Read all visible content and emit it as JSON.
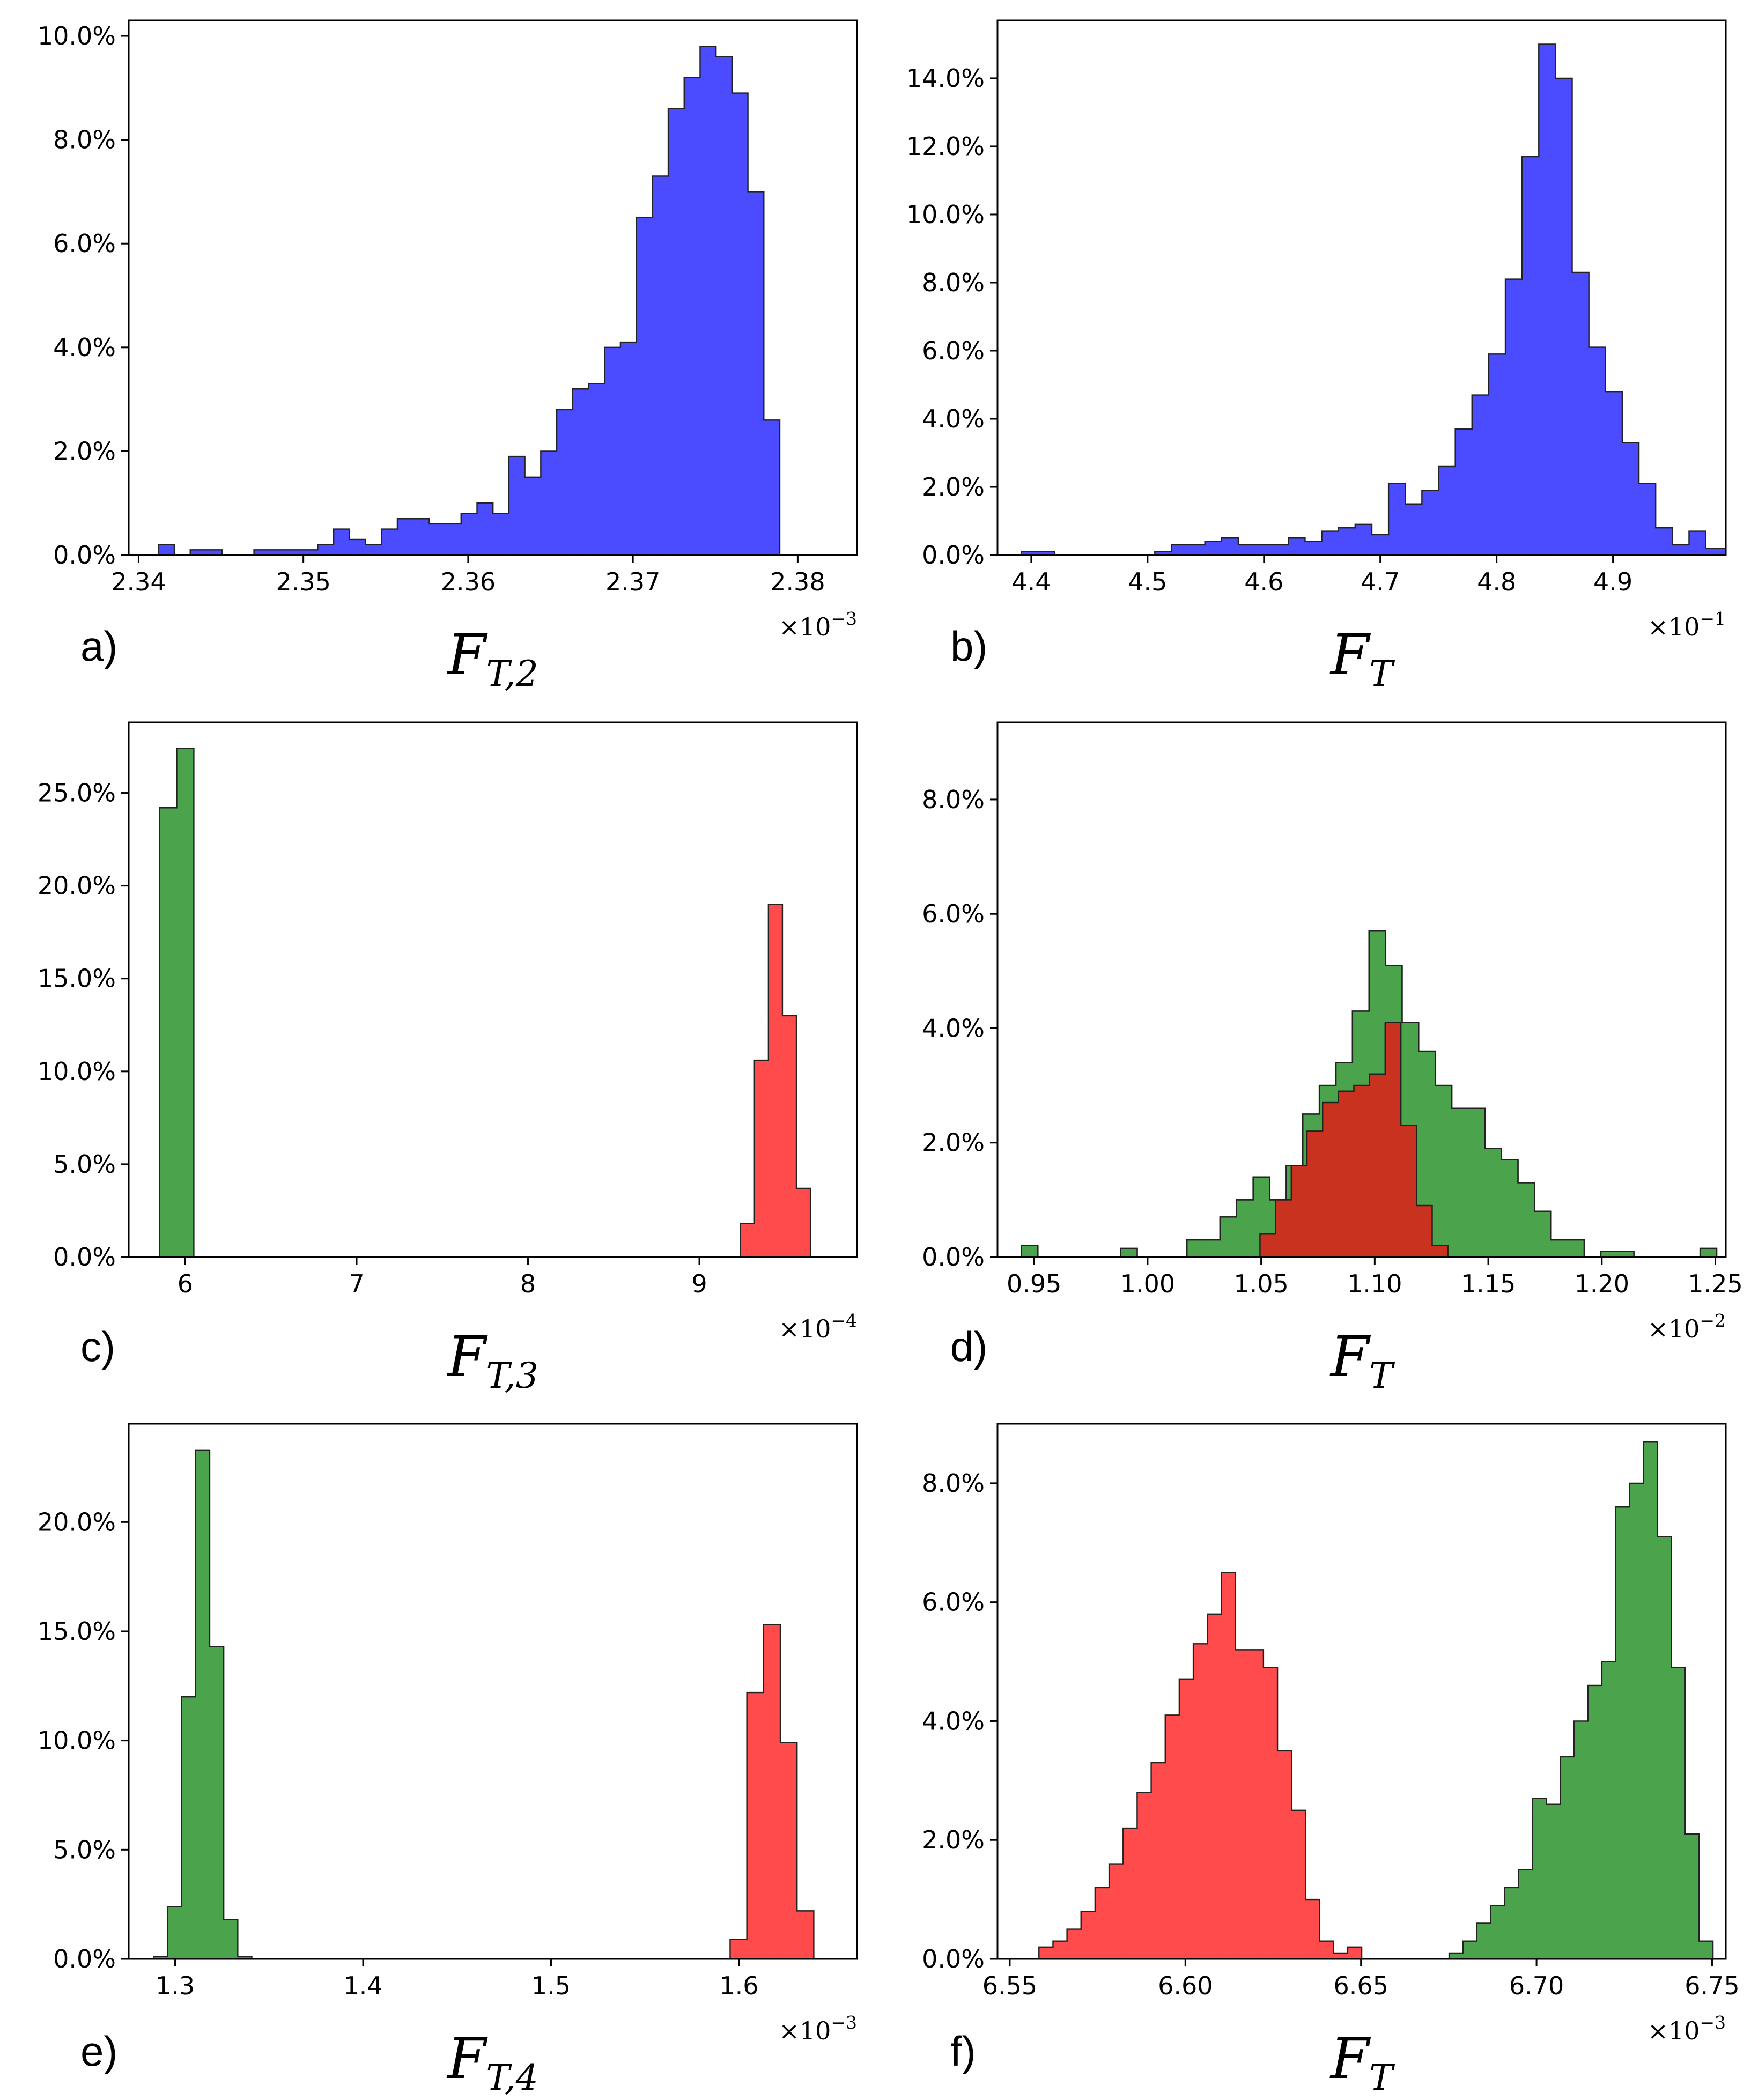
{
  "colors": {
    "blue": "#4b4bff",
    "red": "#ff4b4b",
    "green": "#4ba34b",
    "overlap": "#c8321e",
    "edge": "#222222"
  },
  "chart_data": [
    {
      "type": "histogram",
      "panel_label": "a)",
      "xlabel": {
        "main": "F",
        "sub": "T,2"
      },
      "multiplier": {
        "base": "×10",
        "exp": "−3"
      },
      "xlim": [
        2.3394,
        2.3836
      ],
      "ylim": [
        0,
        10.3
      ],
      "xticks": [
        "2.34",
        "2.35",
        "2.36",
        "2.37",
        "2.38"
      ],
      "xtick_values": [
        2.34,
        2.35,
        2.36,
        2.37,
        2.38
      ],
      "yticks": [
        "0.0%",
        "2.0%",
        "4.0%",
        "6.0%",
        "8.0%",
        "10.0%"
      ],
      "ytick_values": [
        0,
        2,
        4,
        6,
        8,
        10
      ],
      "series": [
        {
          "name": "blue",
          "color": "blue",
          "bin_start": 2.3412,
          "bin_width": 0.000967,
          "values": [
            0.2,
            0,
            0.1,
            0.1,
            0,
            0,
            0.1,
            0.1,
            0.1,
            0.1,
            0.2,
            0.5,
            0.3,
            0.2,
            0.5,
            0.7,
            0.7,
            0.6,
            0.6,
            0.8,
            1.0,
            0.8,
            1.9,
            1.5,
            2.0,
            2.8,
            3.2,
            3.3,
            4.0,
            4.1,
            6.5,
            7.3,
            8.6,
            9.2,
            9.8,
            9.6,
            8.9,
            7.0,
            2.6
          ]
        }
      ]
    },
    {
      "type": "histogram",
      "panel_label": "b)",
      "xlabel": {
        "main": "F",
        "sub": "T"
      },
      "multiplier": {
        "base": "×10",
        "exp": "−1"
      },
      "xlim": [
        4.371,
        4.997
      ],
      "ylim": [
        0,
        15.7
      ],
      "xticks": [
        "4.4",
        "4.5",
        "4.6",
        "4.7",
        "4.8",
        "4.9"
      ],
      "xtick_values": [
        4.4,
        4.5,
        4.6,
        4.7,
        4.8,
        4.9
      ],
      "yticks": [
        "0.0%",
        "2.0%",
        "4.0%",
        "6.0%",
        "8.0%",
        "10.0%",
        "12.0%",
        "14.0%"
      ],
      "ytick_values": [
        0,
        2,
        4,
        6,
        8,
        10,
        12,
        14
      ],
      "series": [
        {
          "name": "blue",
          "color": "blue",
          "bin_start": 4.3914,
          "bin_width": 0.01435,
          "values": [
            0.1,
            0.1,
            0,
            0,
            0,
            0,
            0,
            0,
            0.1,
            0.3,
            0.3,
            0.4,
            0.5,
            0.3,
            0.3,
            0.3,
            0.5,
            0.4,
            0.7,
            0.8,
            0.9,
            0.6,
            2.1,
            1.5,
            1.9,
            2.6,
            3.7,
            4.7,
            5.9,
            8.1,
            11.7,
            15.0,
            14.0,
            8.3,
            6.1,
            4.8,
            3.3,
            2.1,
            0.8,
            0.3,
            0.7,
            0.2,
            0.2
          ]
        }
      ]
    },
    {
      "type": "histogram",
      "panel_label": "c)",
      "xlabel": {
        "main": "F",
        "sub": "T,3"
      },
      "multiplier": {
        "base": "×10",
        "exp": "−4"
      },
      "xlim": [
        5.67,
        9.92
      ],
      "ylim": [
        0,
        28.8
      ],
      "xticks": [
        "6",
        "7",
        "8",
        "9"
      ],
      "xtick_values": [
        6,
        7,
        8,
        9
      ],
      "yticks": [
        "0.0%",
        "5.0%",
        "10.0%",
        "15.0%",
        "20.0%",
        "25.0%"
      ],
      "ytick_values": [
        0,
        5,
        10,
        15,
        20,
        25
      ],
      "series": [
        {
          "name": "green",
          "color": "green",
          "bin_start": 5.85,
          "bin_width": 0.1,
          "values": [
            24.2,
            27.4
          ]
        },
        {
          "name": "red",
          "color": "red",
          "bin_start": 9.24,
          "bin_width": 0.0816,
          "values": [
            1.8,
            10.6,
            19.0,
            13.0,
            3.7
          ]
        }
      ]
    },
    {
      "type": "histogram",
      "panel_label": "d)",
      "xlabel": {
        "main": "F",
        "sub": "T"
      },
      "multiplier": {
        "base": "×10",
        "exp": "−2"
      },
      "xlim": [
        0.9339,
        1.2546
      ],
      "ylim": [
        0,
        9.35
      ],
      "xticks": [
        "0.95",
        "1.00",
        "1.05",
        "1.10",
        "1.15",
        "1.20",
        "1.25"
      ],
      "xtick_values": [
        0.95,
        1.0,
        1.05,
        1.1,
        1.15,
        1.2,
        1.25
      ],
      "yticks": [
        "0.0%",
        "2.0%",
        "4.0%",
        "6.0%",
        "8.0%"
      ],
      "ytick_values": [
        0,
        2,
        4,
        6,
        8
      ],
      "series": [
        {
          "name": "green",
          "color": "green",
          "bin_start": 0.9444,
          "bin_width": 0.00729,
          "values": [
            0.2,
            0,
            0,
            0,
            0,
            0,
            0.15,
            0,
            0,
            0,
            0.3,
            0.3,
            0.7,
            1.0,
            1.4,
            1.0,
            1.6,
            2.5,
            3.0,
            3.4,
            4.3,
            5.7,
            5.1,
            4.1,
            3.6,
            3.0,
            2.6,
            2.6,
            1.9,
            1.7,
            1.3,
            0.8,
            0.3,
            0.3,
            0,
            0.1,
            0.1,
            0,
            0,
            0,
            0,
            0.15
          ]
        },
        {
          "name": "red",
          "color": "red",
          "bin_start": 1.0495,
          "bin_width": 0.00689,
          "values": [
            0.4,
            1.0,
            1.6,
            2.2,
            2.7,
            2.9,
            3.0,
            3.2,
            4.1,
            2.3,
            0.9,
            0.2
          ]
        }
      ]
    },
    {
      "type": "histogram",
      "panel_label": "e)",
      "xlabel": {
        "main": "F",
        "sub": "T,4"
      },
      "multiplier": {
        "base": "×10",
        "exp": "−3"
      },
      "xlim": [
        1.2753,
        1.6628
      ],
      "ylim": [
        0,
        24.5
      ],
      "xticks": [
        "1.3",
        "1.4",
        "1.5",
        "1.6"
      ],
      "xtick_values": [
        1.3,
        1.4,
        1.5,
        1.6
      ],
      "yticks": [
        "0.0%",
        "5.0%",
        "10.0%",
        "15.0%",
        "20.0%"
      ],
      "ytick_values": [
        0,
        5,
        10,
        15,
        20
      ],
      "series": [
        {
          "name": "green",
          "color": "green",
          "bin_start": 1.2885,
          "bin_width": 0.00747,
          "values": [
            0.1,
            2.4,
            12.0,
            23.3,
            14.3,
            1.8,
            0.1
          ]
        },
        {
          "name": "red",
          "color": "red",
          "bin_start": 1.5953,
          "bin_width": 0.0089,
          "values": [
            0.9,
            12.2,
            15.3,
            9.9,
            2.2
          ]
        }
      ]
    },
    {
      "type": "histogram",
      "panel_label": "f)",
      "xlabel": {
        "main": "F",
        "sub": "T"
      },
      "multiplier": {
        "base": "×10",
        "exp": "−3"
      },
      "xlim": [
        6.5465,
        6.7539
      ],
      "ylim": [
        0,
        9.0
      ],
      "xticks": [
        "6.55",
        "6.60",
        "6.65",
        "6.70",
        "6.75"
      ],
      "xtick_values": [
        6.55,
        6.6,
        6.65,
        6.7,
        6.75
      ],
      "yticks": [
        "0.0%",
        "2.0%",
        "4.0%",
        "6.0%",
        "8.0%"
      ],
      "ytick_values": [
        0,
        2,
        4,
        6,
        8
      ],
      "series": [
        {
          "name": "red",
          "color": "red",
          "bin_start": 6.5583,
          "bin_width": 0.003996,
          "values": [
            0.2,
            0.3,
            0.5,
            0.8,
            1.2,
            1.6,
            2.2,
            2.8,
            3.3,
            4.1,
            4.7,
            5.3,
            5.8,
            6.5,
            5.2,
            5.2,
            4.9,
            3.5,
            2.5,
            1.0,
            0.3,
            0.1,
            0.2
          ]
        },
        {
          "name": "green",
          "color": "green",
          "bin_start": 6.6751,
          "bin_width": 0.003955,
          "values": [
            0.1,
            0.3,
            0.6,
            0.9,
            1.2,
            1.5,
            2.7,
            2.6,
            3.4,
            4.0,
            4.6,
            5.0,
            7.6,
            8.0,
            8.7,
            7.1,
            4.9,
            2.1,
            0.3
          ]
        }
      ]
    }
  ]
}
